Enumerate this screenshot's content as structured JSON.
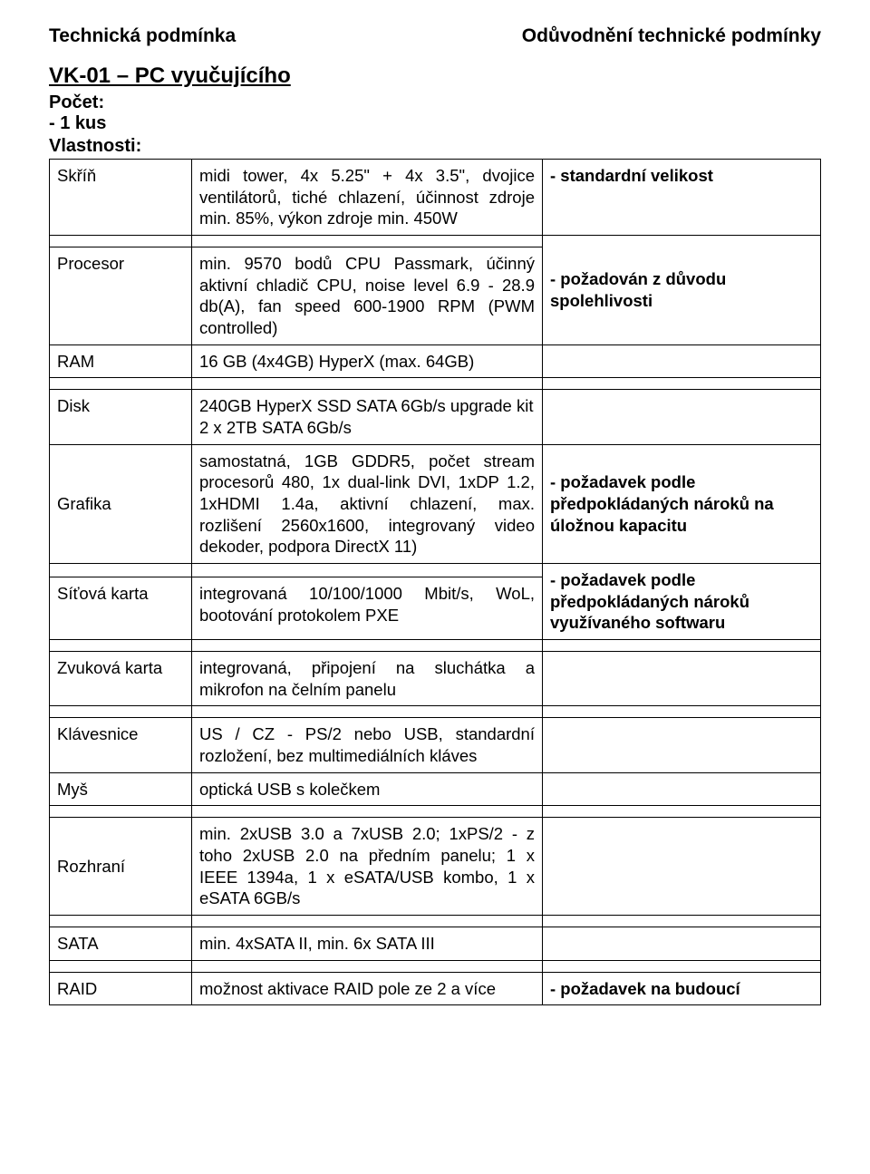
{
  "header": {
    "left": "Technická podmínka",
    "right": "Odůvodnění technické podmínky"
  },
  "product": {
    "title": "VK-01 – PC vyučujícího",
    "count_label": "Počet:",
    "count_value": "- 1 kus",
    "props_label": "Vlastnosti:"
  },
  "rows": {
    "skrin": {
      "label": "Skříň",
      "value": "midi tower, 4x 5.25\" + 4x 3.5\", dvojice ventilátorů, tiché chlazení, účinnost zdroje min. 85%, výkon zdroje min. 450W",
      "note": "- standardní velikost"
    },
    "procesor": {
      "label": "Procesor",
      "value": "min. 9570 bodů CPU Passmark, účinný aktivní chladič CPU, noise level 6.9 - 28.9 db(A), fan speed 600-1900 RPM (PWM controlled)",
      "note": "- požadován z důvodu spolehlivosti"
    },
    "ram": {
      "label": "RAM",
      "value": "16 GB (4x4GB) HyperX (max. 64GB)"
    },
    "disk": {
      "label": "Disk",
      "value": "240GB HyperX SSD SATA 6Gb/s upgrade kit\n2 x 2TB SATA 6Gb/s"
    },
    "grafika": {
      "label": "Grafika",
      "value": "samostatná, 1GB GDDR5, počet stream procesorů 480, 1x dual-link DVI, 1xDP 1.2, 1xHDMI 1.4a, aktivní chlazení, max. rozlišení 2560x1600, integrovaný video dekoder, podpora DirectX 11)",
      "note": "- požadavek podle předpokládaných nároků na úložnou kapacitu"
    },
    "sitova": {
      "label": "Síťová karta",
      "value": "integrovaná 10/100/1000 Mbit/s, WoL, bootování protokolem PXE",
      "note": "- požadavek podle předpokládaných nároků využívaného softwaru"
    },
    "zvukova": {
      "label": "Zvuková karta",
      "value": "integrovaná, připojení na sluchátka a mikrofon na čelním panelu"
    },
    "klavesnice": {
      "label": "Klávesnice",
      "value": "US / CZ - PS/2 nebo USB, standardní rozložení, bez  multimediálních kláves"
    },
    "mys": {
      "label": "Myš",
      "value": "optická USB s kolečkem"
    },
    "rozhrani": {
      "label": "Rozhraní",
      "value": "min. 2xUSB 3.0 a 7xUSB 2.0; 1xPS/2 - z toho 2xUSB 2.0 na předním panelu; 1 x IEEE 1394a, 1 x eSATA/USB kombo, 1 x eSATA 6GB/s"
    },
    "sata": {
      "label": "SATA",
      "value": "min. 4xSATA II, min. 6x SATA III"
    },
    "raid": {
      "label": "RAID",
      "value": "možnost aktivace RAID pole ze 2 a více",
      "note": "- požadavek na budoucí"
    }
  }
}
